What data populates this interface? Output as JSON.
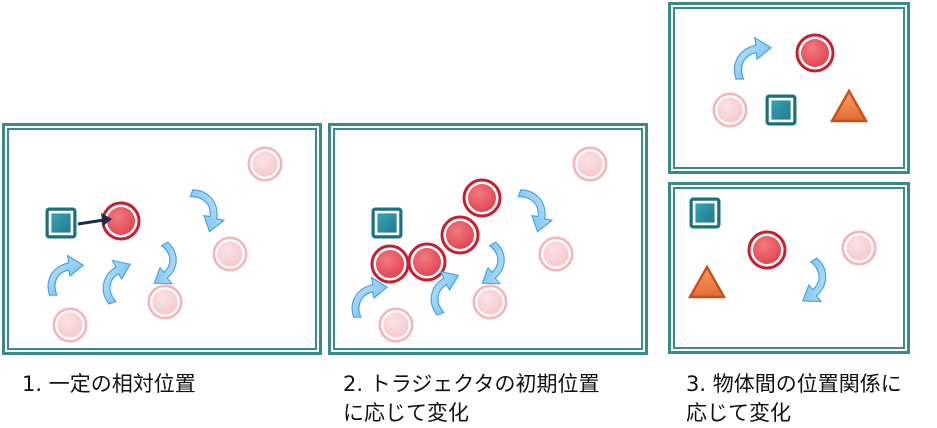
{
  "captions": {
    "c1": "1. 一定の相対位置",
    "c2_line1": "2. トラジェクタの初期位置",
    "c2_line2": "に応じて変化",
    "c3_line1": "3. 物体間の位置関係に",
    "c3_line2": "応じて変化"
  },
  "colors": {
    "frame": "#3a8a8a",
    "red_object": "#e2434f",
    "faded_object": "#f6c9cc",
    "square": "#2a8ba0",
    "triangle": "#ec7a42",
    "arrow": "#6cc0f2",
    "relation_arrow": "#1e2b46"
  }
}
